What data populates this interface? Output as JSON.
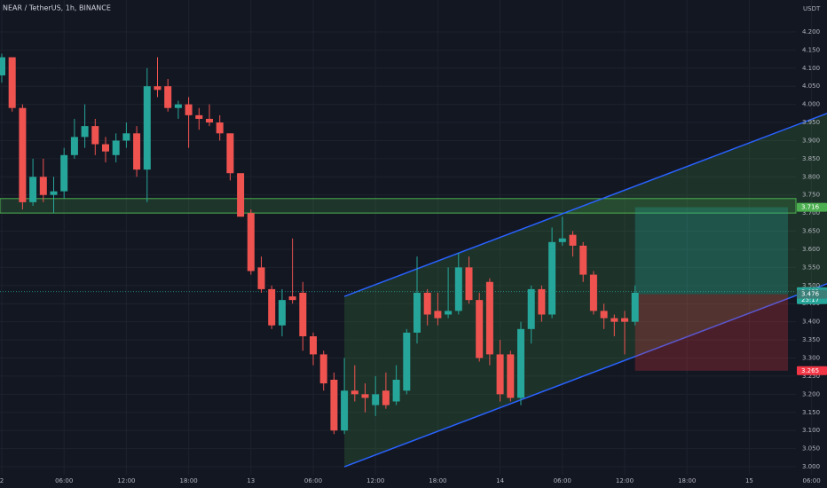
{
  "chart_data": {
    "type": "candlestick",
    "title": "NEAR / TetherUS, 1h, BINANCE",
    "y_axis_label": "USDT",
    "up_color": "#26a69a",
    "down_color": "#ef5350",
    "categories": [
      "2",
      null,
      null,
      null,
      null,
      null,
      "06:00",
      null,
      null,
      null,
      null,
      null,
      "12:00",
      null,
      null,
      null,
      null,
      null,
      "18:00",
      null,
      null,
      null,
      null,
      null,
      "13",
      null,
      null,
      null,
      null,
      null,
      "06:00",
      null,
      null,
      null,
      null,
      null,
      "12:00",
      null,
      null,
      null,
      null,
      null,
      "18:00",
      null,
      null,
      null,
      null,
      null,
      "14",
      null,
      null,
      null,
      null,
      null,
      "06:00",
      null,
      null,
      null,
      null,
      null,
      "12:00",
      null,
      null,
      null,
      null,
      null,
      "18:00",
      null,
      null,
      null,
      null,
      null,
      "15",
      null,
      null,
      null,
      null,
      null,
      "06:00"
    ],
    "open": [
      4.08,
      4.13,
      3.99,
      3.73,
      3.8,
      3.75,
      3.76,
      3.86,
      3.91,
      3.94,
      3.89,
      3.86,
      3.9,
      3.92,
      3.82,
      4.05,
      4.05,
      3.99,
      4.0,
      3.97,
      3.96,
      3.95,
      3.92,
      3.81,
      3.7,
      3.55,
      3.49,
      3.39,
      3.47,
      3.48,
      3.36,
      3.31,
      3.24,
      3.1,
      3.21,
      3.2,
      3.17,
      3.21,
      3.18,
      3.21,
      3.37,
      3.48,
      3.43,
      3.42,
      3.43,
      3.55,
      3.46,
      3.51,
      3.31,
      3.31,
      3.19,
      3.38,
      3.49,
      3.42,
      3.62,
      3.64,
      3.61,
      3.53,
      3.43,
      3.41,
      3.41,
      3.4,
      null,
      null,
      null,
      null,
      null,
      null,
      null,
      null,
      null,
      null,
      null,
      null,
      null,
      null,
      null,
      null,
      null
    ],
    "high": [
      4.14,
      4.13,
      4.0,
      3.85,
      3.85,
      3.8,
      3.88,
      3.96,
      4.0,
      3.96,
      3.91,
      3.92,
      3.95,
      3.94,
      4.1,
      4.13,
      4.07,
      4.01,
      4.02,
      3.99,
      4.0,
      3.97,
      3.92,
      3.81,
      3.71,
      3.58,
      3.5,
      3.49,
      3.63,
      3.51,
      3.37,
      3.32,
      3.26,
      3.3,
      3.28,
      3.23,
      3.25,
      3.26,
      3.28,
      3.38,
      3.58,
      3.49,
      3.48,
      3.55,
      3.59,
      3.58,
      3.48,
      3.52,
      3.35,
      3.32,
      3.4,
      3.5,
      3.5,
      3.66,
      3.69,
      3.65,
      3.62,
      3.54,
      3.45,
      3.42,
      3.43,
      3.5,
      null,
      null,
      null,
      null,
      null,
      null,
      null,
      null,
      null,
      null,
      null,
      null,
      null,
      null,
      null,
      null,
      null
    ],
    "low": [
      4.06,
      3.98,
      3.71,
      3.72,
      3.73,
      3.7,
      3.74,
      3.85,
      3.88,
      3.86,
      3.84,
      3.84,
      3.88,
      3.8,
      3.73,
      4.02,
      3.98,
      3.96,
      3.88,
      3.93,
      3.94,
      3.9,
      3.79,
      3.69,
      3.53,
      3.48,
      3.38,
      3.36,
      3.45,
      3.32,
      3.28,
      3.21,
      3.09,
      3.09,
      3.18,
      3.15,
      3.14,
      3.16,
      3.17,
      3.2,
      3.34,
      3.39,
      3.39,
      3.41,
      3.42,
      3.45,
      3.29,
      3.28,
      3.18,
      3.18,
      3.17,
      3.34,
      3.4,
      3.41,
      3.61,
      3.58,
      3.51,
      3.42,
      3.38,
      3.36,
      3.31,
      3.39,
      null,
      null,
      null,
      null,
      null,
      null,
      null,
      null,
      null,
      null,
      null,
      null,
      null,
      null,
      null,
      null,
      null
    ],
    "close": [
      4.13,
      3.99,
      3.73,
      3.8,
      3.75,
      3.76,
      3.86,
      3.91,
      3.94,
      3.89,
      3.87,
      3.9,
      3.92,
      3.82,
      4.05,
      4.04,
      3.99,
      4.0,
      3.97,
      3.96,
      3.95,
      3.92,
      3.81,
      3.69,
      3.54,
      3.49,
      3.39,
      3.46,
      3.46,
      3.36,
      3.31,
      3.23,
      3.1,
      3.21,
      3.2,
      3.19,
      3.2,
      3.17,
      3.24,
      3.37,
      3.48,
      3.42,
      3.41,
      3.43,
      3.55,
      3.46,
      3.3,
      3.31,
      3.2,
      3.19,
      3.38,
      3.49,
      3.42,
      3.62,
      3.63,
      3.61,
      3.53,
      3.43,
      3.41,
      3.4,
      3.4,
      3.48,
      null,
      null,
      null,
      null,
      null,
      null,
      null,
      null,
      null,
      null,
      null,
      null,
      null,
      null,
      null,
      null,
      null
    ],
    "ylim": [
      2.978,
      4.288
    ],
    "yticks": [
      {
        "value": 3.0,
        "label": "3.000"
      },
      {
        "value": 3.05,
        "label": "3.050"
      },
      {
        "value": 3.1,
        "label": "3.100"
      },
      {
        "value": 3.15,
        "label": "3.150"
      },
      {
        "value": 3.2,
        "label": "3.200"
      },
      {
        "value": 3.25,
        "label": "3.250"
      },
      {
        "value": 3.3,
        "label": "3.300"
      },
      {
        "value": 3.35,
        "label": "3.350"
      },
      {
        "value": 3.4,
        "label": "3.400"
      },
      {
        "value": 3.45,
        "label": "3.450"
      },
      {
        "value": 3.5,
        "label": "3.500"
      },
      {
        "value": 3.55,
        "label": "3.550"
      },
      {
        "value": 3.6,
        "label": "3.600"
      },
      {
        "value": 3.65,
        "label": "3.650"
      },
      {
        "value": 3.7,
        "label": "3.700"
      },
      {
        "value": 3.75,
        "label": "3.750"
      },
      {
        "value": 3.8,
        "label": "3.800"
      },
      {
        "value": 3.85,
        "label": "3.850"
      },
      {
        "value": 3.9,
        "label": "3.900"
      },
      {
        "value": 3.95,
        "label": "3.950"
      },
      {
        "value": 4.0,
        "label": "4.000"
      },
      {
        "value": 4.05,
        "label": "4.050"
      },
      {
        "value": 4.1,
        "label": "4.100"
      },
      {
        "value": 4.15,
        "label": "4.150"
      },
      {
        "value": 4.2,
        "label": "4.200"
      }
    ],
    "grid": true,
    "zone": [
      3.7,
      3.74
    ],
    "channel": {
      "upper": [
        3.47,
        3.975
      ],
      "lower": [
        3.0,
        3.505
      ]
    },
    "price_tags": [
      {
        "value": 3.716,
        "label": "3.716",
        "color": "#4caf50"
      },
      {
        "value": 3.483,
        "label": "3.483",
        "color": "#26a69a"
      },
      {
        "value": 3.476,
        "label": "3.476",
        "color": "#3b7f78"
      },
      {
        "value": 3.265,
        "label": "3.265",
        "color": "#f23645"
      }
    ],
    "countdown": "25:17"
  }
}
